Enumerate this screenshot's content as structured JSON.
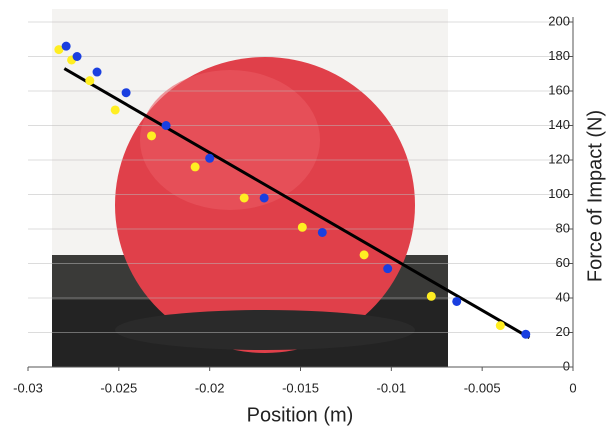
{
  "chart_data": {
    "type": "scatter",
    "xlabel": "Position (m)",
    "ylabel": "Force of Impact (N)",
    "xlim": [
      -0.03,
      0
    ],
    "ylim": [
      0,
      200
    ],
    "xticks": [
      -0.03,
      -0.025,
      -0.02,
      -0.015,
      -0.01,
      -0.005,
      0
    ],
    "yticks": [
      0,
      20,
      40,
      60,
      80,
      100,
      120,
      140,
      160,
      180,
      200
    ],
    "grid": true,
    "series": [
      {
        "color": "#ffee22",
        "x": [
          -0.0283,
          -0.0276,
          -0.0266,
          -0.0252,
          -0.0232,
          -0.0208,
          -0.0181,
          -0.0149,
          -0.0115,
          -0.0078,
          -0.004
        ],
        "values": [
          184,
          178,
          166,
          149,
          134,
          116,
          98,
          81,
          65,
          41,
          24
        ]
      },
      {
        "color": "#1a3fe0",
        "x": [
          -0.0279,
          -0.0273,
          -0.0262,
          -0.0246,
          -0.0224,
          -0.02,
          -0.017,
          -0.0138,
          -0.0102,
          -0.0064,
          -0.0026
        ],
        "values": [
          186,
          180,
          171,
          159,
          140,
          121,
          98,
          78,
          57,
          38,
          19
        ]
      }
    ],
    "trendline": {
      "color": "#000000",
      "x": [
        -0.028,
        -0.0024
      ],
      "values": [
        173,
        17
      ]
    }
  }
}
